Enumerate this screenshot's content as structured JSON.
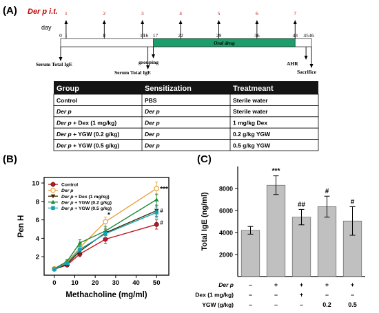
{
  "panelA": {
    "label": "(A)",
    "derp_it": "Der p i.t.",
    "day_label": "day",
    "sens_numbers": [
      "1",
      "2",
      "3",
      "4",
      "5",
      "6",
      "7"
    ],
    "days": [
      "0",
      "1",
      "8",
      "15",
      "16",
      "17",
      "22",
      "29",
      "36",
      "43",
      "45",
      "46"
    ],
    "oral_drug": "Oral drug",
    "events": {
      "serum1": "Serum Total IgE",
      "serum2": "Serum Total IgE",
      "grouping": "grouping",
      "ahr": "AHR",
      "sacrifice": "Sacrifice"
    },
    "colors": {
      "oral_bar": "#1a9e6a",
      "sens_red": "#c00000"
    },
    "table": {
      "headers": [
        "Group",
        "Sensitization",
        "Treatmeant"
      ],
      "rows": [
        [
          "Control",
          "PBS",
          "Sterile water"
        ],
        [
          "Der p",
          "Der p",
          "Sterile water"
        ],
        [
          "Der p + Dex (1 mg/kg)",
          "Der p",
          "1 mg/kg Dex"
        ],
        [
          "Der p + YGW (0.2 g/kg)",
          "Der p",
          "0.2 g/kg YGW"
        ],
        [
          "Der p + YGW (0.5 g/kg)",
          "Der p",
          "0.5 g/kg YGW"
        ]
      ]
    }
  },
  "chart_data": [
    {
      "type": "line",
      "panel": "(B)",
      "xlabel": "Methacholine (mg/ml)",
      "ylabel": "Pen H",
      "x": [
        0,
        6.25,
        12.5,
        25,
        50
      ],
      "xticks": [
        "0",
        "10",
        "20",
        "30",
        "40",
        "50"
      ],
      "yticks": [
        "2",
        "4",
        "6",
        "8",
        "10"
      ],
      "xlim": [
        -5,
        56
      ],
      "ylim": [
        0,
        10.6
      ],
      "legend_position": "top-left",
      "series": [
        {
          "name": "Control",
          "color": "#c0141e",
          "marker": "circle-filled",
          "values": [
            0.65,
            1.1,
            2.3,
            3.9,
            5.5
          ],
          "err": [
            0.1,
            0.15,
            0.3,
            0.45,
            0.5
          ]
        },
        {
          "name": "Der p",
          "color": "#e8a13c",
          "marker": "circle-open",
          "values": [
            0.7,
            1.4,
            3.0,
            5.8,
            9.4
          ],
          "err": [
            0.1,
            0.2,
            0.35,
            0.5,
            0.7
          ]
        },
        {
          "name": "Der p + Dex (1 mg/kg)",
          "color": "#3a2a00",
          "marker": "triangle-down",
          "values": [
            0.65,
            1.2,
            2.6,
            4.6,
            7.0
          ],
          "err": [
            0.1,
            0.15,
            0.3,
            0.5,
            0.6
          ]
        },
        {
          "name": "Der p + YGW (0.2 g/kg)",
          "color": "#1f8a3a",
          "marker": "triangle-up",
          "values": [
            0.7,
            1.5,
            3.5,
            4.8,
            8.2
          ],
          "err": [
            0.1,
            0.2,
            0.35,
            0.5,
            0.6
          ]
        },
        {
          "name": "Der p + YGW (0.5 g/kg)",
          "color": "#13a3b5",
          "marker": "square",
          "values": [
            0.65,
            1.3,
            2.8,
            4.5,
            6.8
          ],
          "err": [
            0.1,
            0.15,
            0.3,
            0.45,
            0.6
          ]
        }
      ],
      "annotations": [
        {
          "text": "***",
          "x": 50,
          "y": 9.4
        },
        {
          "text": "*",
          "x": 25,
          "y": 5.8
        },
        {
          "text": "#",
          "x": 50,
          "y": 6.9
        },
        {
          "text": "#",
          "x": 50,
          "y": 5.6
        }
      ]
    },
    {
      "type": "bar",
      "panel": "(C)",
      "ylabel": "Total IgE (ng/ml)",
      "ylim": [
        0,
        10000
      ],
      "yticks": [
        "2000",
        "4000",
        "6000",
        "8000"
      ],
      "bar_color": "#c0c0c0",
      "values": [
        4200,
        8300,
        5400,
        6350,
        5050
      ],
      "err": [
        350,
        850,
        700,
        950,
        1300
      ],
      "annotations": [
        "",
        "***",
        "##",
        "#",
        "#"
      ],
      "factor_rows": [
        {
          "label": "Der p",
          "cells": [
            "–",
            "+",
            "+",
            "+",
            "+"
          ]
        },
        {
          "label": "Dex (1 mg/kg)",
          "cells": [
            "–",
            "–",
            "+",
            "–",
            "–"
          ]
        },
        {
          "label": "YGW (g/kg)",
          "cells": [
            "–",
            "–",
            "–",
            "0.2",
            "0.5"
          ]
        }
      ]
    }
  ],
  "panels": {
    "b_label": "(B)",
    "c_label": "(C)"
  }
}
